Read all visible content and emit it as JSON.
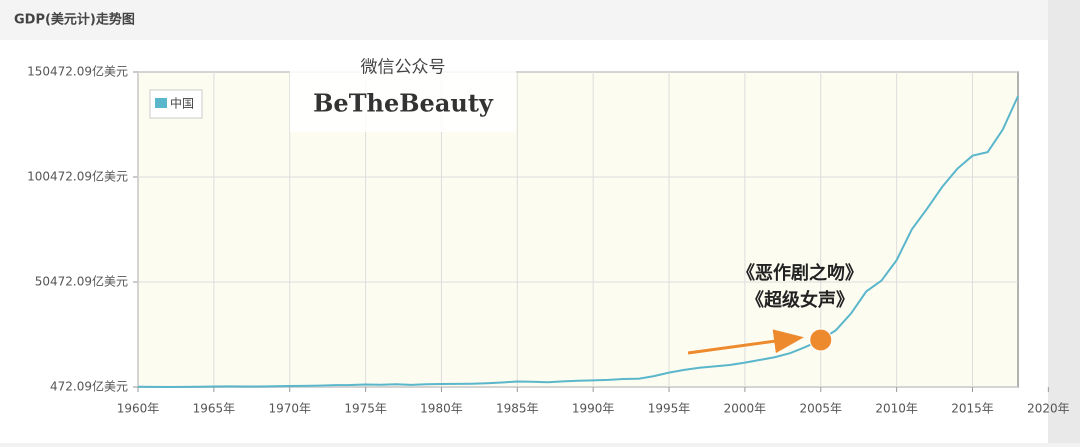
{
  "header": {
    "title": "GDP(美元计)走势图"
  },
  "watermark": {
    "line1": "微信公众号",
    "line2": "BeTheBeauty"
  },
  "chart_data": {
    "type": "line",
    "x": [
      1960,
      1961,
      1962,
      1963,
      1964,
      1965,
      1966,
      1967,
      1968,
      1969,
      1970,
      1971,
      1972,
      1973,
      1974,
      1975,
      1976,
      1977,
      1978,
      1979,
      1980,
      1981,
      1982,
      1983,
      1984,
      1985,
      1986,
      1987,
      1988,
      1989,
      1990,
      1991,
      1992,
      1993,
      1994,
      1995,
      1996,
      1997,
      1998,
      1999,
      2000,
      2001,
      2002,
      2003,
      2004,
      2005,
      2006,
      2007,
      2008,
      2009,
      2010,
      2011,
      2012,
      2013,
      2014,
      2015,
      2016,
      2017,
      2018
    ],
    "series": [
      {
        "name": "中国",
        "color": "#5ab6cb",
        "values": [
          597,
          500,
          472,
          507,
          593,
          704,
          767,
          727,
          701,
          787,
          926,
          998,
          1137,
          1385,
          1442,
          1639,
          1539,
          1749,
          1495,
          1783,
          1911,
          1958,
          2050,
          2303,
          2599,
          3094,
          3008,
          2729,
          3123,
          3476,
          3609,
          3834,
          4269,
          4447,
          5643,
          7340,
          8637,
          9616,
          10290,
          10940,
          12113,
          13394,
          14705,
          16603,
          19553,
          22860,
          27521,
          35522,
          45982,
          51100,
          60872,
          75515,
          85322,
          95704,
          104385,
          110616,
          112333,
          123104,
          138948
        ]
      }
    ],
    "xlim": [
      1960,
      2018
    ],
    "xticks": [
      {
        "value": 1960,
        "label": "1960年"
      },
      {
        "value": 1965,
        "label": "1965年"
      },
      {
        "value": 1970,
        "label": "1970年"
      },
      {
        "value": 1975,
        "label": "1975年"
      },
      {
        "value": 1980,
        "label": "1980年"
      },
      {
        "value": 1985,
        "label": "1985年"
      },
      {
        "value": 1990,
        "label": "1990年"
      },
      {
        "value": 1995,
        "label": "1995年"
      },
      {
        "value": 2000,
        "label": "2000年"
      },
      {
        "value": 2005,
        "label": "2005年"
      },
      {
        "value": 2010,
        "label": "2010年"
      },
      {
        "value": 2015,
        "label": "2015年"
      },
      {
        "value": 2020,
        "label": "2020年"
      }
    ],
    "ylim": [
      472.09,
      150472.09
    ],
    "yticks": [
      {
        "value": 472.09,
        "label": "472.09亿美元"
      },
      {
        "value": 50472.09,
        "label": "50472.09亿美元"
      },
      {
        "value": 100472.09,
        "label": "100472.09亿美元"
      },
      {
        "value": 150472.09,
        "label": "150472.09亿美元"
      }
    ],
    "grid": true,
    "legend": "upper left",
    "highlight": {
      "x": 2005,
      "color": "#ee8a2e"
    },
    "annotations": [
      "《恶作剧之吻》",
      "《超级女声》"
    ]
  }
}
